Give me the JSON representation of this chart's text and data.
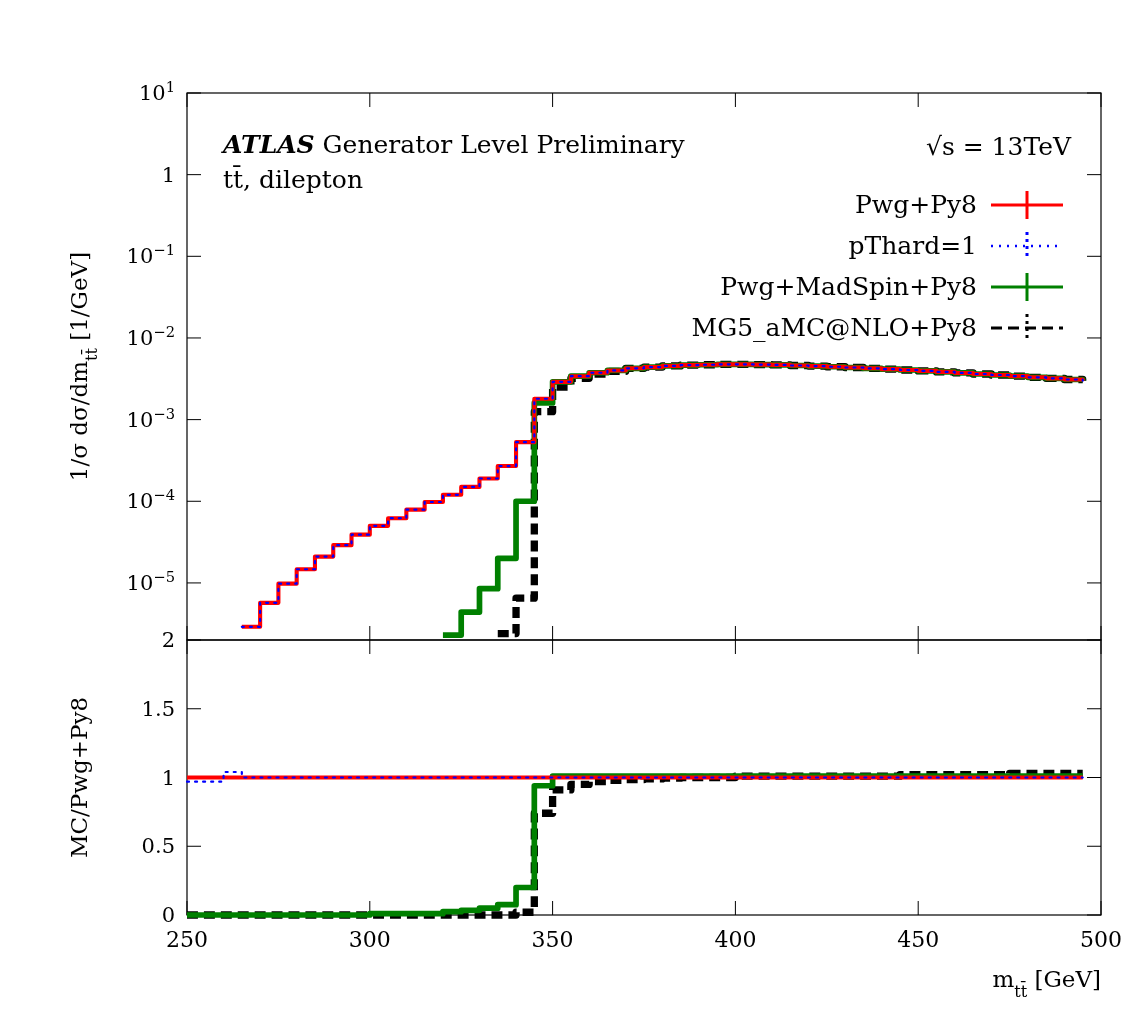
{
  "chart_data": [
    {
      "type": "step",
      "ylabel": "1/σ dσ/dm$_{tt̄}$ [1/GeV]",
      "log": true,
      "ylim": [
        2e-06,
        10
      ],
      "yticks": [
        {
          "value": 10,
          "label": "10$^{1}$"
        },
        {
          "value": 1,
          "label": "1"
        },
        {
          "value": 0.1,
          "label": "10$^{−1}$"
        },
        {
          "value": 0.01,
          "label": "10$^{−2}$"
        },
        {
          "value": 0.001,
          "label": "10$^{−3}$"
        },
        {
          "value": 0.0001,
          "label": "10$^{−4}$"
        },
        {
          "value": 1e-05,
          "label": "10$^{−5}$"
        }
      ],
      "xlim": [
        250,
        500
      ],
      "xticks": [
        250,
        300,
        350,
        400,
        450,
        500
      ],
      "tick_labels": "y",
      "grid": false,
      "legend": "top right",
      "annotations": [
        "ATLAS Generator Level Preliminary",
        "tt̄, dilepton",
        "√s = 13TeV"
      ],
      "x": [
        265,
        270,
        275,
        280,
        285,
        290,
        295,
        300,
        305,
        310,
        315,
        320,
        325,
        330,
        335,
        340,
        345,
        350,
        355,
        360,
        365,
        370,
        375,
        380,
        385,
        390,
        395,
        400,
        405,
        410,
        415,
        420,
        425,
        430,
        435,
        440,
        445,
        450,
        455,
        460,
        465,
        470,
        475,
        480,
        485,
        490,
        495
      ],
      "series": [
        {
          "name": "Pwg+Py8",
          "color": "#ff0000",
          "line_style": "solid",
          "values": [
            2.9e-06,
            5.7e-06,
            9.8e-06,
            1.47e-05,
            2.1e-05,
            2.9e-05,
            3.9e-05,
            5e-05,
            6.2e-05,
            7.9e-05,
            9.8e-05,
            0.00012,
            0.00015,
            0.00019,
            0.00027,
            0.00053,
            0.0018,
            0.0029,
            0.0034,
            0.00375,
            0.004,
            0.00425,
            0.0044,
            0.00455,
            0.00465,
            0.0047,
            0.00475,
            0.00475,
            0.00472,
            0.00468,
            0.0046,
            0.00452,
            0.00444,
            0.00435,
            0.00425,
            0.00415,
            0.00405,
            0.00395,
            0.00384,
            0.00373,
            0.00362,
            0.00352,
            0.00341,
            0.0033,
            0.0032,
            0.0031,
            0.003
          ]
        },
        {
          "name": "pThard=1",
          "color": "#0000ff",
          "line_style": "dotted",
          "values": [
            2.9e-06,
            5.7e-06,
            9.8e-06,
            1.47e-05,
            2.1e-05,
            2.9e-05,
            3.9e-05,
            5e-05,
            6.2e-05,
            7.9e-05,
            9.8e-05,
            0.00012,
            0.00015,
            0.00019,
            0.00027,
            0.00053,
            0.0018,
            0.0029,
            0.0034,
            0.00375,
            0.004,
            0.00425,
            0.0044,
            0.00455,
            0.00465,
            0.0047,
            0.00475,
            0.00475,
            0.00472,
            0.00468,
            0.0046,
            0.00452,
            0.00444,
            0.00435,
            0.00425,
            0.00415,
            0.00405,
            0.00395,
            0.00384,
            0.00373,
            0.00362,
            0.00352,
            0.00341,
            0.0033,
            0.0032,
            0.0031,
            0.003
          ]
        },
        {
          "name": "Pwg+MadSpin+Py8",
          "color": "#008000",
          "line_style": "solid",
          "values": [
            null,
            null,
            null,
            null,
            null,
            null,
            null,
            null,
            null,
            null,
            null,
            2.3e-06,
            4.4e-06,
            8.5e-06,
            2e-05,
            0.0001,
            0.0016,
            0.0029,
            0.0034,
            0.00375,
            0.004,
            0.00425,
            0.0044,
            0.00455,
            0.00465,
            0.0047,
            0.00475,
            0.00475,
            0.00472,
            0.00468,
            0.0046,
            0.00452,
            0.00444,
            0.00435,
            0.00425,
            0.00415,
            0.00405,
            0.00395,
            0.00384,
            0.00373,
            0.00362,
            0.00352,
            0.00341,
            0.0033,
            0.0032,
            0.0031,
            0.003
          ]
        },
        {
          "name": "MG5_aMC@NLO+Py8",
          "color": "#000000",
          "line_style": "dashed",
          "values": [
            null,
            null,
            null,
            null,
            null,
            null,
            null,
            null,
            null,
            null,
            null,
            null,
            null,
            null,
            2.4e-06,
            6.5e-06,
            0.00125,
            0.0025,
            0.0032,
            0.0036,
            0.0039,
            0.00425,
            0.0044,
            0.00455,
            0.00465,
            0.0047,
            0.00475,
            0.00475,
            0.00472,
            0.00468,
            0.0046,
            0.00452,
            0.00444,
            0.00435,
            0.00425,
            0.00415,
            0.00405,
            0.00395,
            0.00384,
            0.00373,
            0.00362,
            0.00352,
            0.00341,
            0.0033,
            0.0032,
            0.0031,
            0.003
          ]
        }
      ]
    },
    {
      "type": "step",
      "ylabel": "MC/Pwg+Py8",
      "xlabel": "m$_{tt̄}$ [GeV]",
      "ylim": [
        0,
        2
      ],
      "yticks": [
        0,
        0.5,
        1,
        1.5,
        2
      ],
      "xlim": [
        250,
        500
      ],
      "xticks": [
        250,
        300,
        350,
        400,
        450,
        500
      ],
      "grid": false,
      "legend": false,
      "x": [
        250,
        255,
        260,
        265,
        270,
        275,
        280,
        285,
        290,
        295,
        300,
        305,
        310,
        315,
        320,
        325,
        330,
        335,
        340,
        345,
        350,
        355,
        360,
        365,
        370,
        375,
        380,
        385,
        390,
        395,
        400,
        405,
        410,
        415,
        420,
        425,
        430,
        435,
        440,
        445,
        450,
        455,
        460,
        465,
        470,
        475,
        480,
        485,
        490,
        495
      ],
      "series": [
        {
          "color": "#ff0000",
          "line_style": "solid",
          "values": [
            1,
            1,
            1,
            1,
            1,
            1,
            1,
            1,
            1,
            1,
            1,
            1,
            1,
            1,
            1,
            1,
            1,
            1,
            1,
            1,
            1,
            1,
            1,
            1,
            1,
            1,
            1,
            1,
            1,
            1,
            1,
            1,
            1,
            1,
            1,
            1,
            1,
            1,
            1,
            1,
            1,
            1,
            1,
            1,
            1,
            1,
            1,
            1,
            1,
            1
          ]
        },
        {
          "color": "#0000ff",
          "line_style": "dotted",
          "values": [
            0.97,
            0.97,
            1.04,
            1,
            1,
            1,
            1,
            1,
            1,
            1,
            1,
            1,
            1,
            1,
            1,
            1,
            1,
            1,
            1,
            1,
            1,
            1,
            1,
            1,
            1,
            1,
            1,
            1,
            1,
            1,
            1,
            1,
            1,
            1,
            1,
            1,
            1,
            1,
            1,
            1,
            1,
            1,
            1,
            1,
            1,
            1,
            1,
            1,
            1,
            1
          ]
        },
        {
          "color": "#008000",
          "line_style": "solid",
          "values": [
            0,
            0,
            0,
            0,
            0,
            0,
            0,
            0,
            0,
            0,
            0.01,
            0.01,
            0.01,
            0.01,
            0.024,
            0.034,
            0.05,
            0.075,
            0.2,
            0.94,
            1.01,
            1.01,
            1.01,
            1.01,
            1.01,
            1.01,
            1.01,
            1.01,
            1.01,
            1.01,
            1.01,
            1.01,
            1.01,
            1.01,
            1.01,
            1.01,
            1.01,
            1.01,
            1.01,
            1.01,
            1.01,
            1.01,
            1.01,
            1.01,
            1.01,
            1.01,
            1.01,
            1.01,
            1.01,
            1.01
          ]
        },
        {
          "color": "#000000",
          "line_style": "dashed",
          "values": [
            0,
            0,
            0,
            0,
            0,
            0,
            0,
            0,
            0,
            0,
            0,
            0,
            0,
            0,
            0,
            0,
            0,
            0,
            0.02,
            0.74,
            0.91,
            0.95,
            0.97,
            0.98,
            0.985,
            0.99,
            0.995,
            1,
            1,
            1,
            1.01,
            1.01,
            1.01,
            1.01,
            1.01,
            1.01,
            1.01,
            1.01,
            1.01,
            1.02,
            1.02,
            1.02,
            1.02,
            1.02,
            1.02,
            1.03,
            1.03,
            1.03,
            1.03,
            1.03
          ]
        }
      ]
    }
  ]
}
